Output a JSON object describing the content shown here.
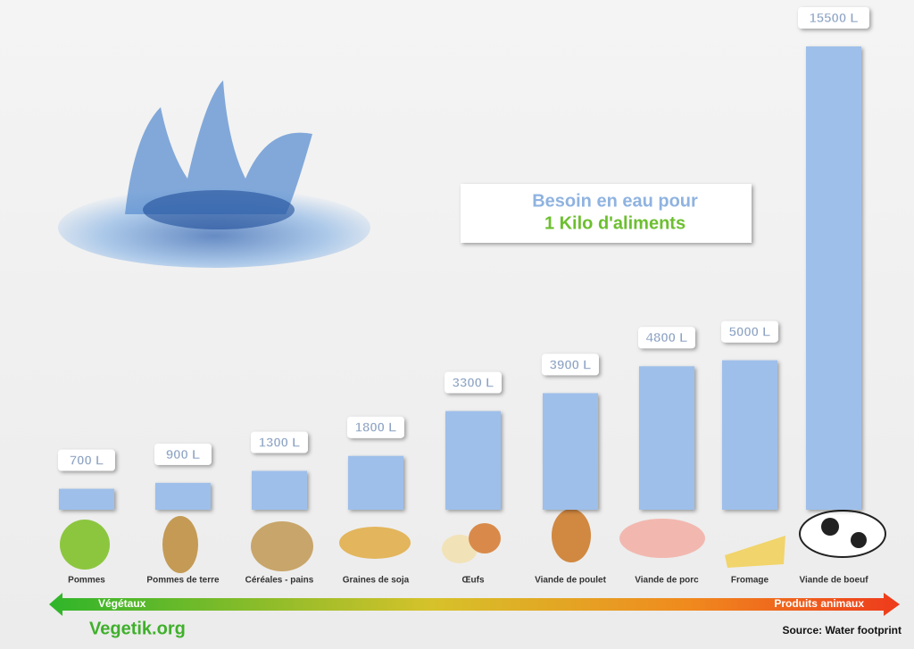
{
  "chart_data": {
    "type": "bar",
    "title": "Besoin en eau pour",
    "subtitle": "1 Kilo d'aliments",
    "categories": [
      "Pommes",
      "Pommes de terre",
      "Céréales - pains",
      "Graines de soja",
      "Œufs",
      "Viande de poulet",
      "Viande de porc",
      "Fromage",
      "Viande de boeuf"
    ],
    "values": [
      700,
      900,
      1300,
      1800,
      3300,
      3900,
      4800,
      5000,
      15500
    ],
    "value_labels": [
      "700 L",
      "900 L",
      "1300 L",
      "1800 L",
      "3300 L",
      "3900 L",
      "4800 L",
      "5000 L",
      "15500 L"
    ],
    "color": "#9ebfea",
    "ylim": [
      0,
      15500
    ],
    "annotations": {
      "left": "Végétaux",
      "right": "Produits animaux",
      "brand": "Vegetik.org",
      "source": "Source: Water footprint"
    }
  }
}
